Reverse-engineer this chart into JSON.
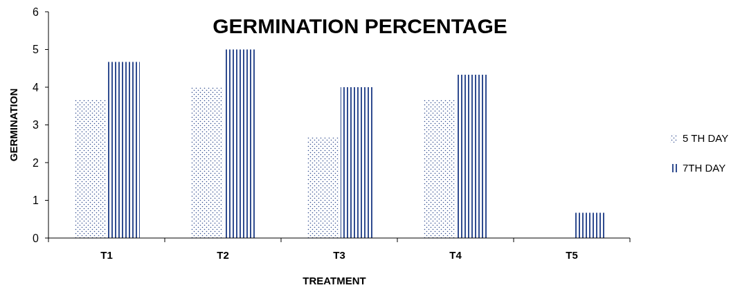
{
  "chart_data": {
    "type": "bar",
    "title": "GERMINATION PERCENTAGE",
    "xlabel": "TREATMENT",
    "ylabel": "GERMINATION",
    "categories": [
      "T1",
      "T2",
      "T3",
      "T4",
      "T5"
    ],
    "series": [
      {
        "name": "5 TH DAY",
        "color": "#2f4b8f",
        "values": [
          3.67,
          4.0,
          2.67,
          3.67,
          0
        ]
      },
      {
        "name": "7TH DAY",
        "color": "#2f4b8f",
        "values": [
          4.67,
          5.0,
          4.0,
          4.33,
          0.67
        ]
      }
    ],
    "ylim": [
      0,
      6
    ],
    "yticks": [
      0,
      1,
      2,
      3,
      4,
      5,
      6
    ],
    "grid": false,
    "legend": "right"
  }
}
